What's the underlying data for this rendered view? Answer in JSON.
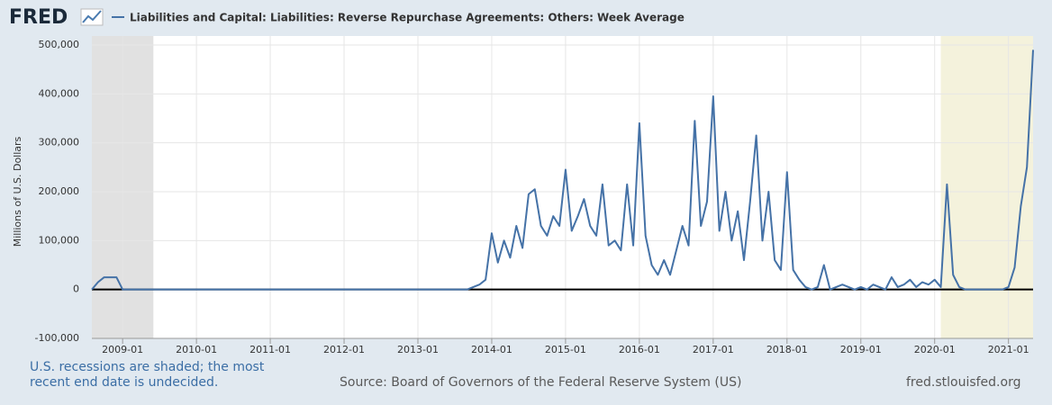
{
  "chart_data": {
    "type": "line",
    "logo": "FRED",
    "y_label": "Millions of U.S. Dollars",
    "note": "U.S. recessions are shaded; the most recent end date is undecided.",
    "source": "Source: Board of Governors of the Federal Reserve System (US)",
    "site": "fred.stlouisfed.org",
    "x": [
      "2008-08",
      "2008-09",
      "2008-10",
      "2008-11",
      "2008-12",
      "2009-01",
      "2009-02",
      "2009-03",
      "2009-04",
      "2009-05",
      "2009-06",
      "2009-07",
      "2009-08",
      "2009-09",
      "2009-10",
      "2009-11",
      "2009-12",
      "2010-01",
      "2010-02",
      "2010-03",
      "2010-04",
      "2010-05",
      "2010-06",
      "2010-07",
      "2010-08",
      "2010-09",
      "2010-10",
      "2010-11",
      "2010-12",
      "2011-01",
      "2011-02",
      "2011-03",
      "2011-04",
      "2011-05",
      "2011-06",
      "2011-07",
      "2011-08",
      "2011-09",
      "2011-10",
      "2011-11",
      "2011-12",
      "2012-01",
      "2012-02",
      "2012-03",
      "2012-04",
      "2012-05",
      "2012-06",
      "2012-07",
      "2012-08",
      "2012-09",
      "2012-10",
      "2012-11",
      "2012-12",
      "2013-01",
      "2013-02",
      "2013-03",
      "2013-04",
      "2013-05",
      "2013-06",
      "2013-07",
      "2013-08",
      "2013-09",
      "2013-10",
      "2013-11",
      "2013-12",
      "2014-01",
      "2014-02",
      "2014-03",
      "2014-04",
      "2014-05",
      "2014-06",
      "2014-07",
      "2014-08",
      "2014-09",
      "2014-10",
      "2014-11",
      "2014-12",
      "2015-01",
      "2015-02",
      "2015-03",
      "2015-04",
      "2015-05",
      "2015-06",
      "2015-07",
      "2015-08",
      "2015-09",
      "2015-10",
      "2015-11",
      "2015-12",
      "2016-01",
      "2016-02",
      "2016-03",
      "2016-04",
      "2016-05",
      "2016-06",
      "2016-07",
      "2016-08",
      "2016-09",
      "2016-10",
      "2016-11",
      "2016-12",
      "2017-01",
      "2017-02",
      "2017-03",
      "2017-04",
      "2017-05",
      "2017-06",
      "2017-07",
      "2017-08",
      "2017-09",
      "2017-10",
      "2017-11",
      "2017-12",
      "2018-01",
      "2018-02",
      "2018-03",
      "2018-04",
      "2018-05",
      "2018-06",
      "2018-07",
      "2018-08",
      "2018-09",
      "2018-10",
      "2018-11",
      "2018-12",
      "2019-01",
      "2019-02",
      "2019-03",
      "2019-04",
      "2019-05",
      "2019-06",
      "2019-07",
      "2019-08",
      "2019-09",
      "2019-10",
      "2019-11",
      "2019-12",
      "2020-01",
      "2020-02",
      "2020-03",
      "2020-04",
      "2020-05",
      "2020-06",
      "2020-07",
      "2020-08",
      "2020-09",
      "2020-10",
      "2020-11",
      "2020-12",
      "2021-01",
      "2021-02",
      "2021-03",
      "2021-04",
      "2021-05"
    ],
    "series": [
      {
        "name": "Liabilities and Capital: Liabilities: Reverse Repurchase Agreements: Others: Week Average",
        "color": "#4572a7",
        "values": [
          0,
          15000,
          25000,
          25000,
          25000,
          0,
          0,
          0,
          0,
          0,
          0,
          0,
          0,
          0,
          0,
          0,
          0,
          0,
          0,
          0,
          0,
          0,
          0,
          0,
          0,
          0,
          0,
          0,
          0,
          0,
          0,
          0,
          0,
          0,
          0,
          0,
          0,
          0,
          0,
          0,
          0,
          0,
          0,
          0,
          0,
          0,
          0,
          0,
          0,
          0,
          0,
          0,
          0,
          0,
          0,
          0,
          0,
          0,
          0,
          0,
          0,
          0,
          5000,
          10000,
          20000,
          115000,
          55000,
          100000,
          65000,
          130000,
          85000,
          195000,
          205000,
          130000,
          110000,
          150000,
          130000,
          245000,
          120000,
          150000,
          185000,
          130000,
          110000,
          215000,
          90000,
          100000,
          80000,
          215000,
          90000,
          340000,
          110000,
          50000,
          30000,
          60000,
          30000,
          80000,
          130000,
          90000,
          345000,
          130000,
          180000,
          395000,
          120000,
          200000,
          100000,
          160000,
          60000,
          180000,
          315000,
          100000,
          200000,
          60000,
          40000,
          240000,
          40000,
          20000,
          5000,
          0,
          5000,
          50000,
          0,
          5000,
          10000,
          5000,
          0,
          5000,
          0,
          10000,
          5000,
          0,
          25000,
          5000,
          10000,
          20000,
          5000,
          15000,
          10000,
          20000,
          5000,
          215000,
          30000,
          5000,
          0,
          0,
          0,
          0,
          0,
          0,
          0,
          5000,
          45000,
          170000,
          250000,
          490000
        ]
      }
    ],
    "recessions": [
      {
        "start": "2008-08",
        "end": "2009-06",
        "color": "#e1e1e1"
      },
      {
        "start": "2020-02",
        "end": "2021-05",
        "color": "#f4f2dc"
      }
    ],
    "xlim": [
      "2008-08",
      "2021-05"
    ],
    "xticks": [
      "2009-01",
      "2010-01",
      "2011-01",
      "2012-01",
      "2013-01",
      "2014-01",
      "2015-01",
      "2016-01",
      "2017-01",
      "2018-01",
      "2019-01",
      "2020-01",
      "2021-01"
    ],
    "ylim": [
      -100000,
      500000
    ],
    "yticks": [
      {
        "value": -100000,
        "label": "-100,000"
      },
      0,
      {
        "value": 100000,
        "label": "100,000"
      },
      {
        "value": 200000,
        "label": "200,000"
      },
      {
        "value": 300000,
        "label": "300,000"
      },
      {
        "value": 400000,
        "label": "400,000"
      },
      {
        "value": 500000,
        "label": "500,000"
      }
    ],
    "grid": true
  }
}
